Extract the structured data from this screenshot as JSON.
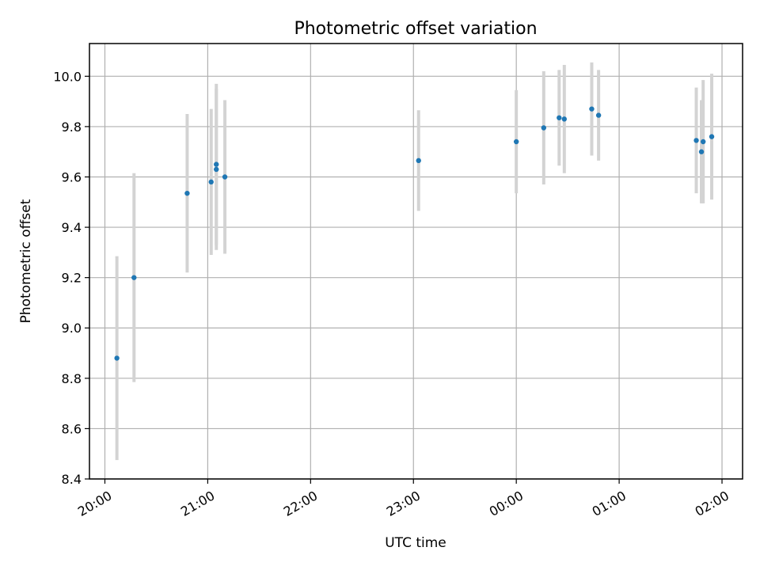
{
  "chart_data": {
    "type": "scatter",
    "title": "Photometric offset variation",
    "xlabel": "UTC time",
    "ylabel": "Photometric offset",
    "x_unit": "time",
    "x_ticks": [
      "20:00",
      "21:00",
      "22:00",
      "23:00",
      "00:00",
      "01:00",
      "02:00"
    ],
    "x_tick_hours": [
      20,
      21,
      22,
      23,
      24,
      25,
      26
    ],
    "xlim": [
      19.85,
      26.2
    ],
    "ylim": [
      8.4,
      10.13
    ],
    "y_ticks": [
      8.4,
      8.6,
      8.8,
      9.0,
      9.2,
      9.4,
      9.6,
      9.8,
      10.0
    ],
    "grid": true,
    "point_color": "#1f77b4",
    "error_color": "#d3d3d3",
    "points": [
      {
        "x": "20:07",
        "y": 8.88,
        "err": 0.405
      },
      {
        "x": "20:17",
        "y": 9.2,
        "err": 0.415
      },
      {
        "x": "20:48",
        "y": 9.535,
        "err": 0.315
      },
      {
        "x": "21:02",
        "y": 9.58,
        "err": 0.29
      },
      {
        "x": "21:05",
        "y": 9.65,
        "err": 0.32
      },
      {
        "x": "21:05",
        "y": 9.63,
        "err": 0.32
      },
      {
        "x": "21:10",
        "y": 9.6,
        "err": 0.305
      },
      {
        "x": "23:03",
        "y": 9.665,
        "err": 0.2
      },
      {
        "x": "00:00",
        "y": 9.74,
        "err": 0.205
      },
      {
        "x": "00:16",
        "y": 9.795,
        "err": 0.225
      },
      {
        "x": "00:25",
        "y": 9.835,
        "err": 0.19
      },
      {
        "x": "00:28",
        "y": 9.83,
        "err": 0.215
      },
      {
        "x": "00:44",
        "y": 9.87,
        "err": 0.185
      },
      {
        "x": "00:48",
        "y": 9.845,
        "err": 0.18
      },
      {
        "x": "01:45",
        "y": 9.745,
        "err": 0.21
      },
      {
        "x": "01:48",
        "y": 9.7,
        "err": 0.205
      },
      {
        "x": "01:49",
        "y": 9.74,
        "err": 0.245
      },
      {
        "x": "01:54",
        "y": 9.76,
        "err": 0.25
      }
    ]
  }
}
